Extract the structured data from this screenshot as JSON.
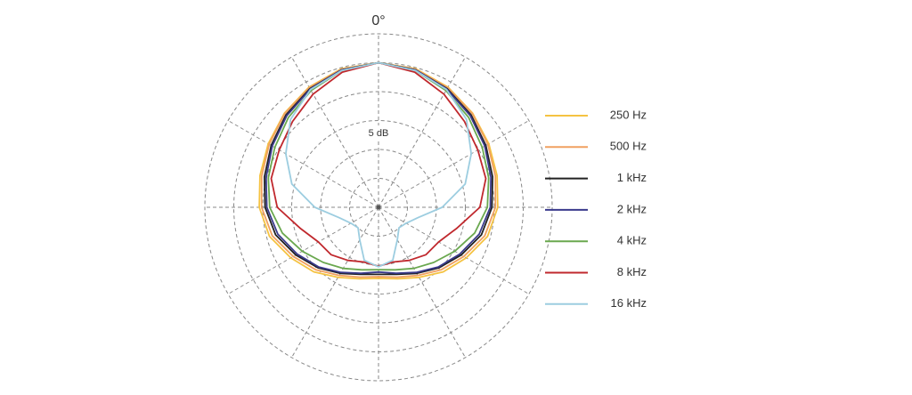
{
  "chart_data": {
    "type": "polar",
    "angle_label": "0°",
    "scale_label": "5 dB",
    "rlim": [
      0,
      30
    ],
    "rticks": [
      5,
      10,
      15,
      20,
      25,
      30
    ],
    "thetaticks": [
      0,
      30,
      60,
      90,
      120,
      150,
      180,
      210,
      240,
      270,
      300,
      330
    ],
    "grid": true,
    "legend": "right",
    "theta": [
      0,
      15,
      30,
      45,
      60,
      75,
      90,
      105,
      120,
      135,
      150,
      165,
      180,
      195,
      210,
      225,
      240,
      255,
      270,
      285,
      300,
      315,
      330,
      345
    ],
    "series": [
      {
        "name": "250 Hz",
        "color": "#f5c342",
        "values": [
          25.0,
          24.8,
          24.0,
          23.0,
          22.0,
          21.2,
          20.6,
          19.5,
          17.5,
          15.8,
          14.0,
          12.8,
          12.3,
          12.8,
          14.0,
          15.8,
          17.5,
          19.5,
          20.6,
          21.2,
          22.0,
          23.0,
          24.0,
          24.8
        ]
      },
      {
        "name": "500 Hz",
        "color": "#f0a060",
        "values": [
          25.0,
          24.7,
          23.9,
          22.9,
          21.8,
          20.9,
          20.2,
          19.0,
          17.0,
          15.3,
          13.6,
          12.5,
          12.0,
          12.5,
          13.6,
          15.3,
          17.0,
          19.0,
          20.2,
          20.9,
          21.8,
          22.9,
          23.9,
          24.7
        ]
      },
      {
        "name": "1 kHz",
        "color": "#222222",
        "values": [
          25.0,
          24.6,
          23.7,
          22.6,
          21.4,
          20.4,
          19.6,
          18.4,
          16.5,
          14.8,
          13.2,
          12.0,
          11.6,
          12.0,
          13.2,
          14.8,
          16.5,
          18.4,
          19.6,
          20.4,
          21.4,
          22.6,
          23.7,
          24.6
        ]
      },
      {
        "name": "2 kHz",
        "color": "#3a3a8c",
        "values": [
          25.0,
          24.6,
          23.6,
          22.4,
          21.2,
          20.1,
          19.3,
          18.0,
          16.2,
          14.6,
          13.0,
          11.8,
          11.2,
          11.8,
          13.0,
          14.6,
          16.2,
          18.0,
          19.3,
          20.1,
          21.2,
          22.4,
          23.6,
          24.6
        ]
      },
      {
        "name": "4 kHz",
        "color": "#6aa84f",
        "values": [
          25.0,
          24.5,
          23.3,
          22.0,
          20.7,
          19.7,
          18.8,
          17.2,
          15.2,
          13.5,
          12.2,
          11.2,
          10.8,
          11.2,
          12.2,
          13.5,
          15.2,
          17.2,
          18.8,
          19.7,
          20.7,
          22.0,
          23.3,
          24.5
        ]
      },
      {
        "name": "8 kHz",
        "color": "#c0282d",
        "values": [
          25.0,
          24.2,
          22.6,
          21.0,
          19.8,
          19.2,
          17.5,
          14.0,
          12.0,
          11.6,
          10.6,
          9.8,
          10.2,
          9.8,
          10.6,
          11.6,
          12.0,
          14.0,
          17.5,
          19.2,
          19.8,
          21.0,
          22.6,
          24.2
        ]
      },
      {
        "name": "16 kHz",
        "color": "#9ccde0",
        "values": [
          25.0,
          24.5,
          23.5,
          21.5,
          18.5,
          15.5,
          11.0,
          7.0,
          5.5,
          5.0,
          6.5,
          9.5,
          10.3,
          9.5,
          6.5,
          5.0,
          5.5,
          7.0,
          11.0,
          15.5,
          18.5,
          21.5,
          23.5,
          24.5
        ]
      }
    ]
  }
}
